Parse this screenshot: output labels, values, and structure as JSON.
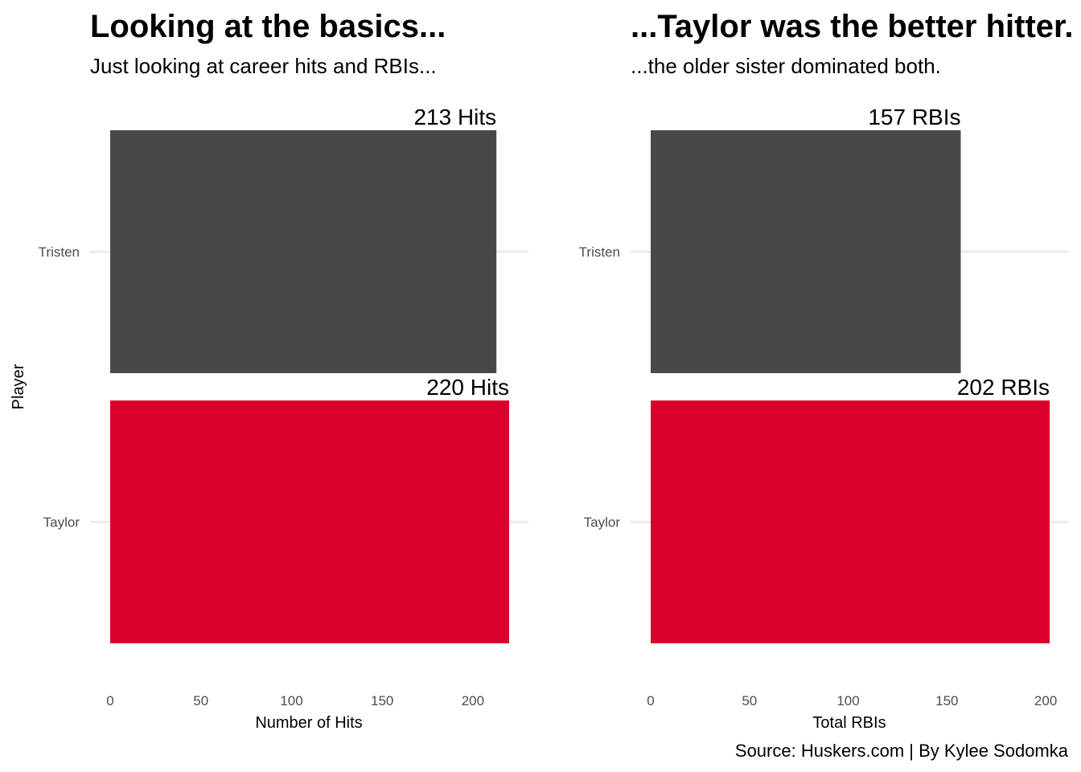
{
  "chart_data": [
    {
      "type": "bar",
      "orientation": "horizontal",
      "title": "Looking at the basics...",
      "subtitle": "Just looking at career hits and RBIs...",
      "categories": [
        "Tristen",
        "Taylor"
      ],
      "values": [
        213,
        220
      ],
      "data_labels": [
        "213 Hits",
        "220 Hits"
      ],
      "bar_colors": [
        "#484848",
        "#DA002B"
      ],
      "xlabel": "Number of Hits",
      "ylabel": "Player",
      "xticks": [
        0,
        50,
        100,
        150,
        200
      ],
      "xlim": [
        0,
        220
      ],
      "grid": "horizontal only",
      "legend": "none"
    },
    {
      "type": "bar",
      "orientation": "horizontal",
      "title": "...Taylor was the better hitter.",
      "subtitle": "...the older sister dominated both.",
      "categories": [
        "Tristen",
        "Taylor"
      ],
      "values": [
        157,
        202
      ],
      "data_labels": [
        "157 RBIs",
        "202 RBIs"
      ],
      "bar_colors": [
        "#484848",
        "#DA002B"
      ],
      "xlabel": "Total RBIs",
      "ylabel": "",
      "xticks": [
        0,
        50,
        100,
        150,
        200
      ],
      "xlim": [
        0,
        202
      ],
      "grid": "horizontal only",
      "legend": "none"
    }
  ],
  "caption": "Source: Huskers.com | By Kylee Sodomka"
}
